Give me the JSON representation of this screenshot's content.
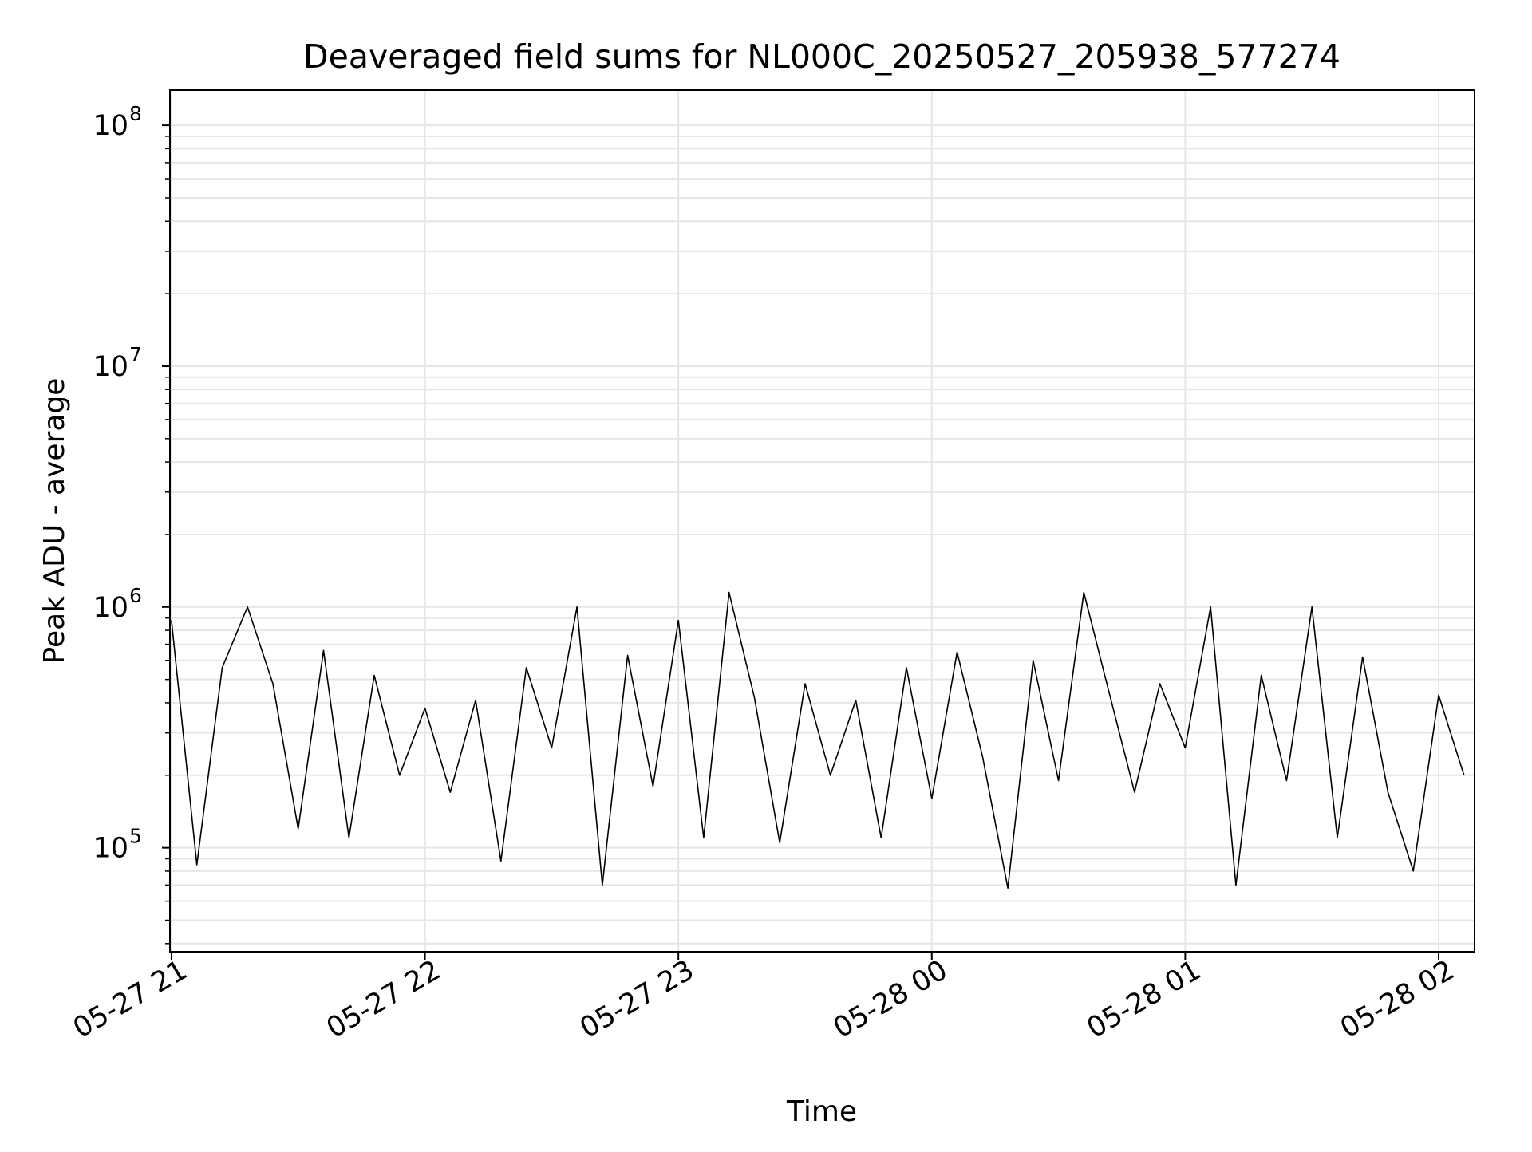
{
  "chart_data": {
    "type": "line",
    "title": "Deaveraged field sums for NL000C_20250527_205938_577274",
    "xlabel": "Time",
    "ylabel": "Peak ADU - average",
    "yscale": "log",
    "ylim": [
      37000,
      140000000
    ],
    "xlim": [
      "05-27 20:59:38",
      "05-28 02:08:30"
    ],
    "grid": true,
    "line_color": "#000000",
    "x_ticks": [
      "05-27 21",
      "05-27 22",
      "05-27 23",
      "05-28 00",
      "05-28 01",
      "05-28 02"
    ],
    "y_ticks": [
      {
        "base": "10",
        "exp": "5",
        "value": 100000
      },
      {
        "base": "10",
        "exp": "6",
        "value": 1000000
      },
      {
        "base": "10",
        "exp": "7",
        "value": 10000000
      },
      {
        "base": "10",
        "exp": "8",
        "value": 100000000
      }
    ],
    "series": [
      {
        "x": [
          "05-27 21:00",
          "05-27 21:06",
          "05-27 21:12",
          "05-27 21:18",
          "05-27 21:24",
          "05-27 21:30",
          "05-27 21:36",
          "05-27 21:42",
          "05-27 21:48",
          "05-27 21:54",
          "05-27 22:00",
          "05-27 22:06",
          "05-27 22:12",
          "05-27 22:18",
          "05-27 22:24",
          "05-27 22:30",
          "05-27 22:36",
          "05-27 22:42",
          "05-27 22:48",
          "05-27 22:54",
          "05-27 23:00",
          "05-27 23:06",
          "05-27 23:12",
          "05-27 23:18",
          "05-27 23:24",
          "05-27 23:30",
          "05-27 23:36",
          "05-27 23:42",
          "05-27 23:48",
          "05-27 23:54",
          "05-28 00:00",
          "05-28 00:06",
          "05-28 00:12",
          "05-28 00:18",
          "05-28 00:24",
          "05-28 00:30",
          "05-28 00:36",
          "05-28 00:42",
          "05-28 00:48",
          "05-28 00:54",
          "05-28 01:00",
          "05-28 01:06",
          "05-28 01:12",
          "05-28 01:18",
          "05-28 01:24",
          "05-28 01:30",
          "05-28 01:36",
          "05-28 01:42",
          "05-28 01:48",
          "05-28 01:54",
          "05-28 02:00",
          "05-28 02:06"
        ],
        "values": [
          880000,
          85000,
          560000,
          1000000,
          480000,
          120000,
          660000,
          110000,
          520000,
          200000,
          380000,
          170000,
          410000,
          88000,
          560000,
          260000,
          1000000,
          70000,
          630000,
          180000,
          880000,
          110000,
          1150000,
          420000,
          105000,
          480000,
          200000,
          410000,
          110000,
          560000,
          160000,
          650000,
          240000,
          68000,
          600000,
          190000,
          1150000,
          440000,
          170000,
          480000,
          260000,
          1000000,
          70000,
          520000,
          190000,
          1000000,
          110000,
          620000,
          170000,
          80000,
          430000,
          200000
        ]
      }
    ]
  }
}
